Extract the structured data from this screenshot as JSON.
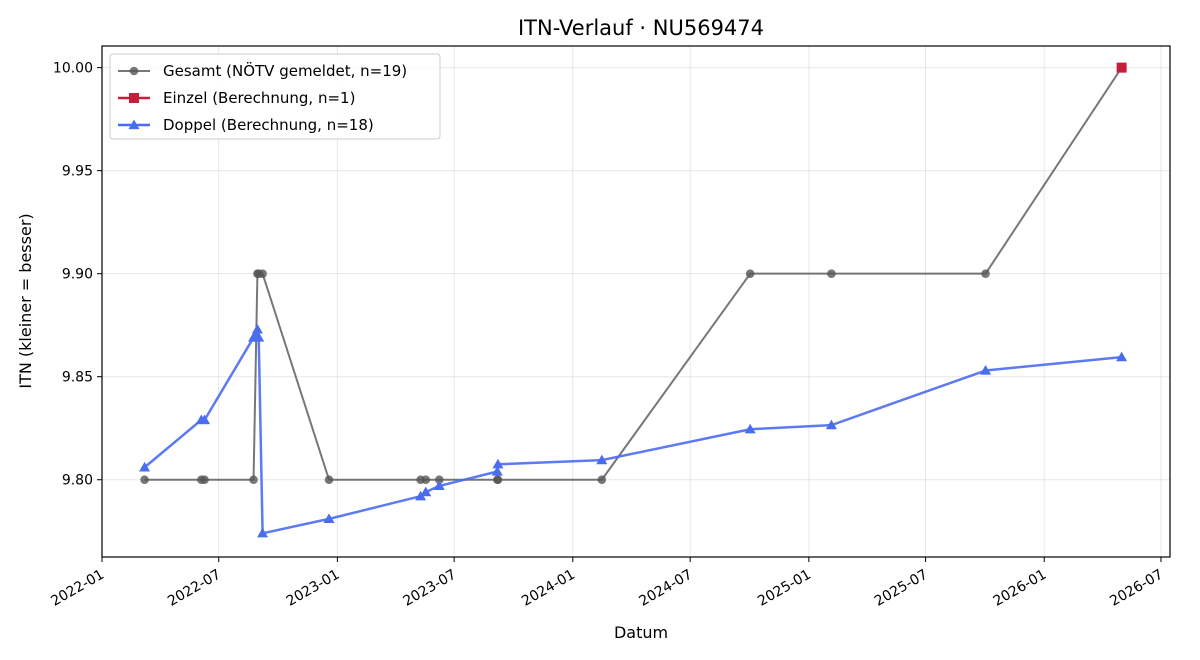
{
  "chart_data": {
    "type": "line",
    "title": "ITN-Verlauf · NU569474",
    "xlabel": "Datum",
    "ylabel": "ITN  (kleiner = besser)",
    "x_axis_type": "date",
    "xlim": [
      "2022-01-01",
      "2026-07-15"
    ],
    "ylim": [
      9.7625,
      10.0105
    ],
    "x_ticks": [
      "2022-01-01",
      "2022-07-01",
      "2023-01-01",
      "2023-07-01",
      "2024-01-01",
      "2024-07-01",
      "2025-01-01",
      "2025-07-01",
      "2026-01-01",
      "2026-07-01"
    ],
    "x_tick_labels": [
      "2022-01",
      "2022-07",
      "2023-01",
      "2023-07",
      "2024-01",
      "2024-07",
      "2025-01",
      "2025-07",
      "2026-01",
      "2026-07"
    ],
    "y_ticks": [
      9.8,
      9.85,
      9.9,
      9.95,
      10.0
    ],
    "y_tick_labels": [
      "9.80",
      "9.85",
      "9.90",
      "9.95",
      "10.00"
    ],
    "grid": true,
    "legend_position": "top-left",
    "series": [
      {
        "name": "Gesamt (NÖTV gemeldet, n=19)",
        "color": "#555555",
        "marker": "circle",
        "points": [
          {
            "x": "2022-03-08",
            "y": 9.8
          },
          {
            "x": "2022-06-04",
            "y": 9.8
          },
          {
            "x": "2022-06-09",
            "y": 9.8
          },
          {
            "x": "2022-08-24",
            "y": 9.8
          },
          {
            "x": "2022-08-30",
            "y": 9.9
          },
          {
            "x": "2022-09-01",
            "y": 9.9
          },
          {
            "x": "2022-09-07",
            "y": 9.9
          },
          {
            "x": "2022-12-19",
            "y": 9.8
          },
          {
            "x": "2023-05-10",
            "y": 9.8
          },
          {
            "x": "2023-05-18",
            "y": 9.8
          },
          {
            "x": "2023-06-08",
            "y": 9.8
          },
          {
            "x": "2023-09-06",
            "y": 9.8
          },
          {
            "x": "2023-09-07",
            "y": 9.8
          },
          {
            "x": "2024-02-15",
            "y": 9.8
          },
          {
            "x": "2024-10-02",
            "y": 9.9
          },
          {
            "x": "2025-02-05",
            "y": 9.9
          },
          {
            "x": "2025-10-02",
            "y": 9.9
          },
          {
            "x": "2026-05-01",
            "y": 10.0
          }
        ]
      },
      {
        "name": "Einzel (Berechnung, n=1)",
        "color": "#c41e3a",
        "marker": "square",
        "points": [
          {
            "x": "2026-05-01",
            "y": 10.0
          }
        ]
      },
      {
        "name": "Doppel (Berechnung, n=18)",
        "color": "#4a6cf0",
        "marker": "triangle",
        "points": [
          {
            "x": "2022-03-08",
            "y": 9.806
          },
          {
            "x": "2022-06-04",
            "y": 9.829
          },
          {
            "x": "2022-06-09",
            "y": 9.829
          },
          {
            "x": "2022-08-24",
            "y": 9.869
          },
          {
            "x": "2022-08-30",
            "y": 9.873
          },
          {
            "x": "2022-09-01",
            "y": 9.869
          },
          {
            "x": "2022-09-07",
            "y": 9.774
          },
          {
            "x": "2022-12-19",
            "y": 9.781
          },
          {
            "x": "2023-05-10",
            "y": 9.792
          },
          {
            "x": "2023-05-18",
            "y": 9.794
          },
          {
            "x": "2023-06-08",
            "y": 9.797
          },
          {
            "x": "2023-09-06",
            "y": 9.804
          },
          {
            "x": "2023-09-07",
            "y": 9.8075
          },
          {
            "x": "2024-02-15",
            "y": 9.8095
          },
          {
            "x": "2024-10-02",
            "y": 9.8245
          },
          {
            "x": "2025-02-05",
            "y": 9.8265
          },
          {
            "x": "2025-10-02",
            "y": 9.853
          },
          {
            "x": "2026-05-01",
            "y": 9.8595
          }
        ]
      }
    ]
  }
}
